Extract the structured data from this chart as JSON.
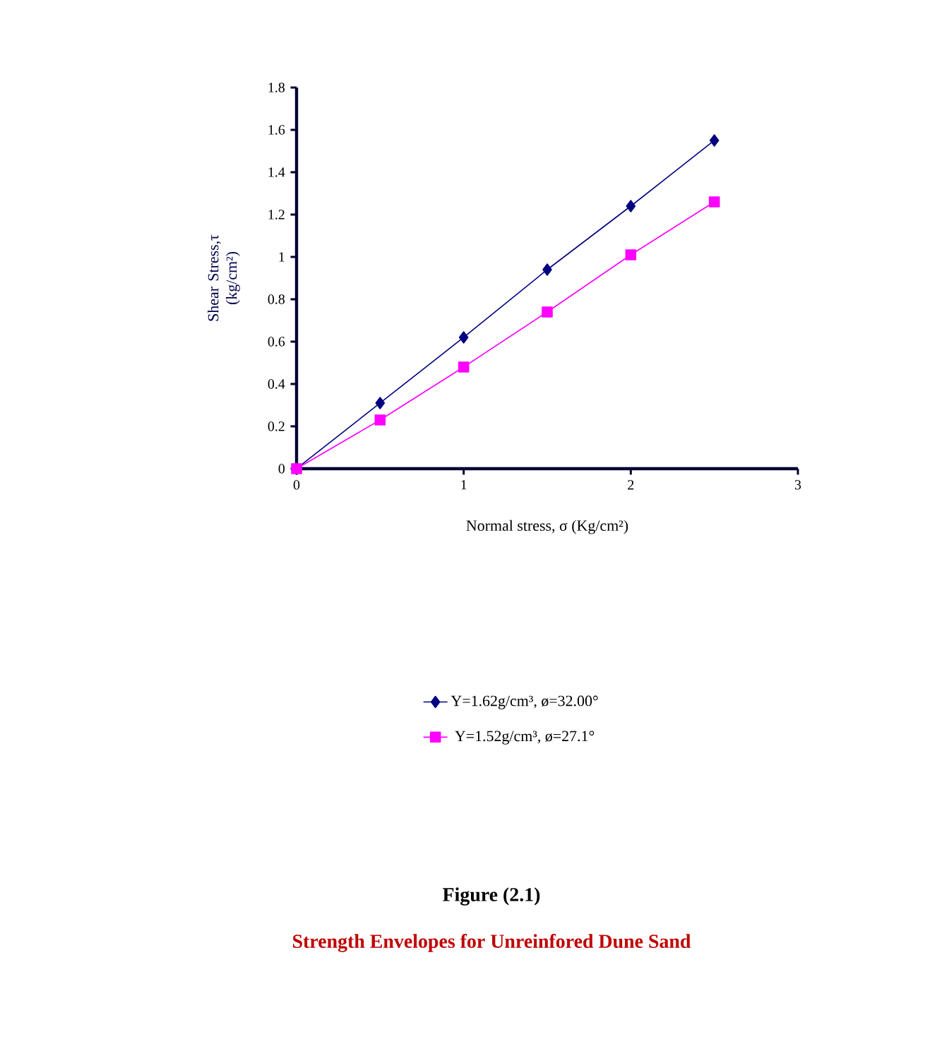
{
  "chart_data": {
    "type": "line",
    "title": "Figure (2.1)",
    "subtitle": "Strength Envelopes for Unreinfored Dune Sand",
    "xlabel": "Normal stress, σ (Kg/cm²)",
    "ylabel": "Shear Stress,τ (kg/cm²)",
    "xlim": [
      0,
      3
    ],
    "xticks": [
      0,
      1,
      2,
      3
    ],
    "ylim": [
      0,
      1.8
    ],
    "yticks": [
      0,
      0.2,
      0.4,
      0.6,
      0.8,
      1,
      1.2,
      1.4,
      1.6,
      1.8
    ],
    "legend": "bottom",
    "grid": false,
    "series": [
      {
        "name": "Υ=1.62g/cm³, ø=32.00°",
        "color": "#000080",
        "marker": "diamond",
        "x": [
          0,
          0.5,
          1,
          1.5,
          2,
          2.5
        ],
        "values": [
          0,
          0.31,
          0.62,
          0.94,
          1.24,
          1.55
        ]
      },
      {
        "name": "Υ=1.52g/cm³, ø=27.1°",
        "color": "#ff00ff",
        "marker": "square",
        "x": [
          0,
          0.5,
          1,
          1.5,
          2,
          2.5
        ],
        "values": [
          0,
          0.23,
          0.48,
          0.74,
          1.01,
          1.26
        ]
      }
    ]
  }
}
